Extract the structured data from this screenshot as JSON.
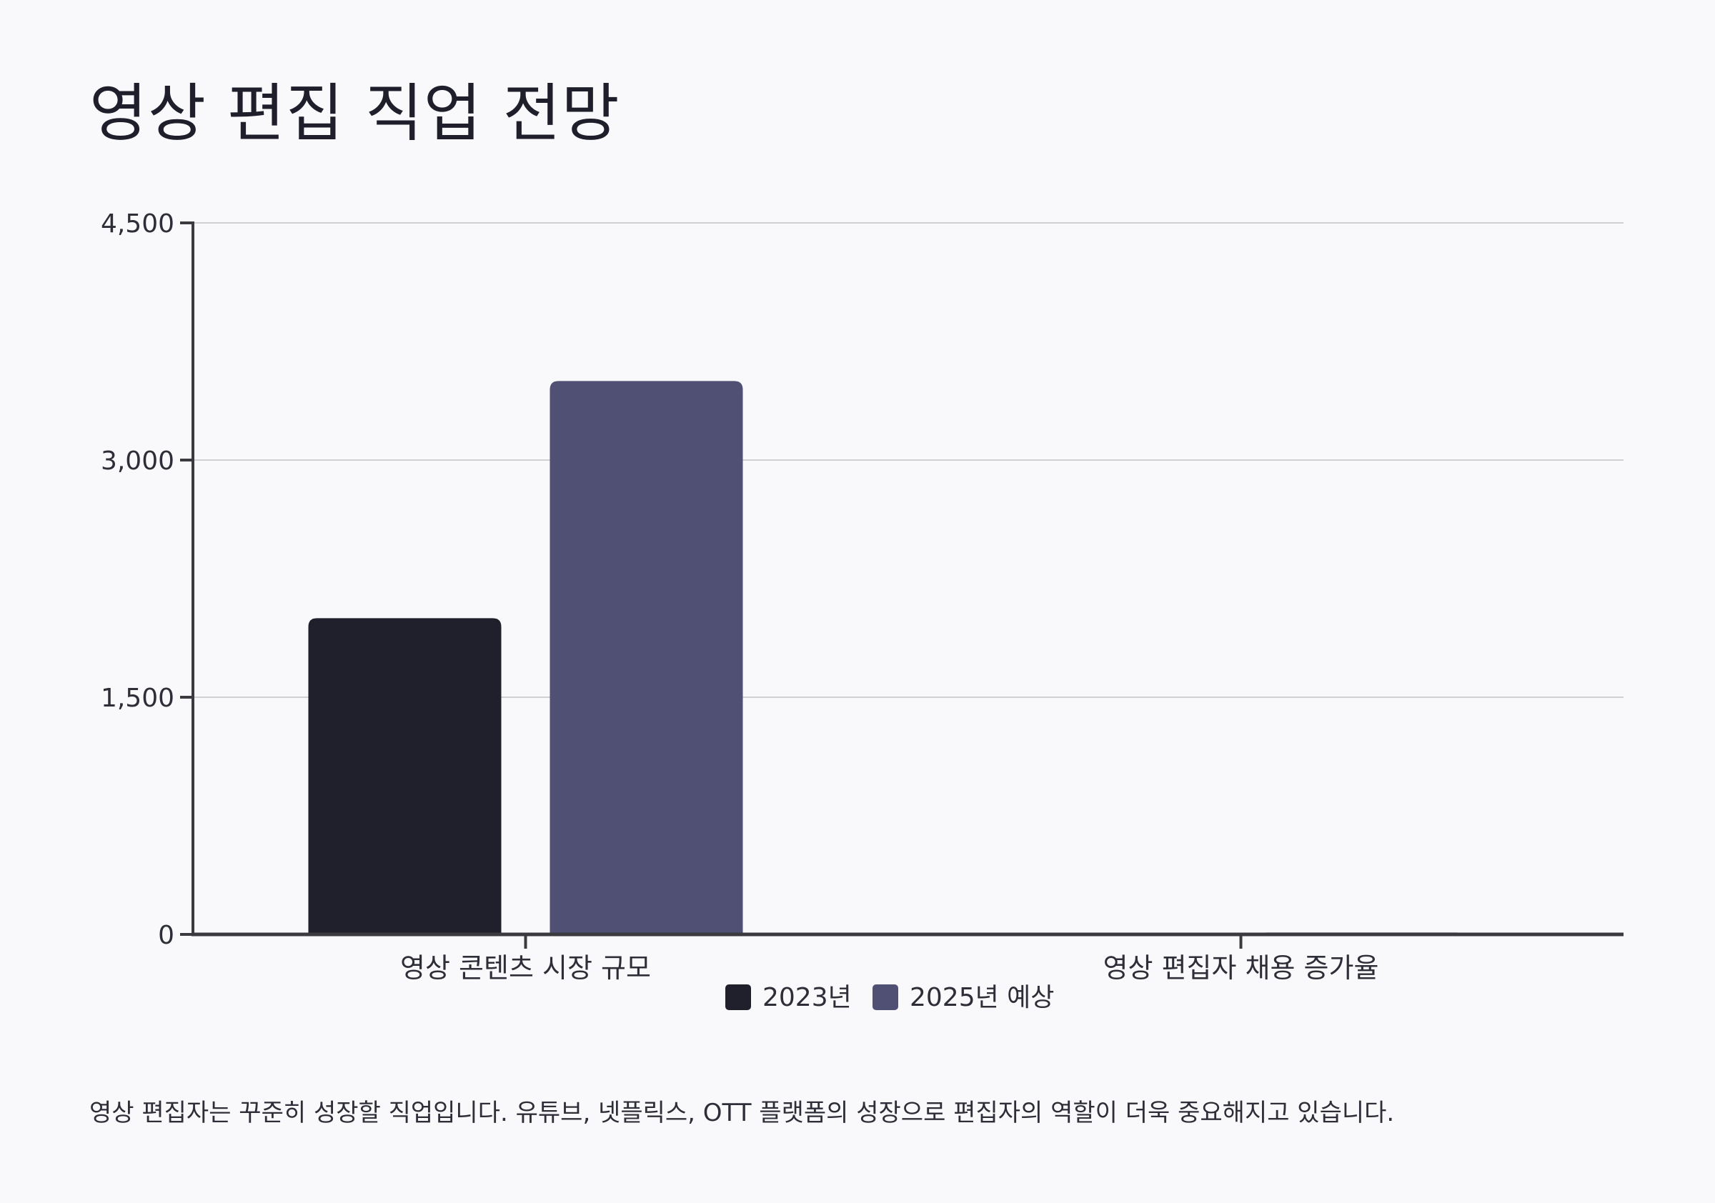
{
  "title": "영상 편집 직업 전망",
  "caption": "영상 편집자는 꾸준히 성장할 직업입니다. 유튜브, 넷플릭스, OTT 플랫폼의 성장으로 편집자의 역할이 더욱 중요해지고 있습니다.",
  "colors": {
    "series_2023": "#20202d",
    "series_2025": "#4f5073",
    "axis": "#3a3a3f",
    "grid": "#cfcfd4"
  },
  "chart_data": {
    "type": "bar",
    "categories": [
      "영상 콘텐츠 시장 규모",
      "영상 편집자 채용 증가율"
    ],
    "series": [
      {
        "name": "2023년",
        "values": [
          2000,
          2
        ]
      },
      {
        "name": "2025년 예상",
        "values": [
          3500,
          12
        ]
      }
    ],
    "ylim": [
      0,
      4500
    ],
    "yticks": [
      0,
      1500,
      3000,
      4500
    ],
    "ytick_labels": [
      "0",
      "1,500",
      "3,000",
      "4,500"
    ],
    "grid": true,
    "legend": "bottom-center",
    "xlabel": "",
    "ylabel": ""
  }
}
